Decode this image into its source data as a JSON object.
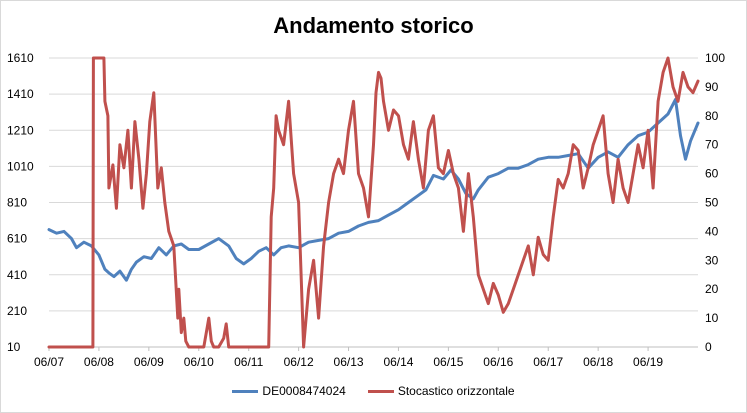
{
  "chart_data": {
    "type": "line",
    "title": "Andamento storico",
    "x_ticks": [
      "06/07",
      "06/08",
      "06/09",
      "06/10",
      "06/11",
      "06/12",
      "06/13",
      "06/14",
      "06/15",
      "06/16",
      "06/17",
      "06/18",
      "06/19"
    ],
    "x_range": [
      2007.5,
      2020.5
    ],
    "y_left": {
      "min": 10,
      "max": 1610,
      "ticks": [
        10,
        210,
        410,
        610,
        810,
        1010,
        1210,
        1410,
        1610
      ]
    },
    "y_right": {
      "min": 0,
      "max": 100,
      "ticks": [
        0,
        10,
        20,
        30,
        40,
        50,
        60,
        70,
        80,
        90,
        100
      ]
    },
    "grid": true,
    "legend_position": "bottom",
    "series": [
      {
        "name": "DE0008474024",
        "axis": "left",
        "color": "#4f81bd",
        "x": [
          2007.5,
          2007.65,
          2007.8,
          2007.95,
          2008.05,
          2008.2,
          2008.35,
          2008.5,
          2008.62,
          2008.7,
          2008.8,
          2008.92,
          2009.05,
          2009.15,
          2009.25,
          2009.4,
          2009.55,
          2009.7,
          2009.85,
          2010.0,
          2010.15,
          2010.3,
          2010.5,
          2010.7,
          2010.9,
          2011.1,
          2011.25,
          2011.4,
          2011.55,
          2011.7,
          2011.85,
          2012.0,
          2012.15,
          2012.3,
          2012.5,
          2012.7,
          2012.9,
          2013.1,
          2013.3,
          2013.5,
          2013.7,
          2013.9,
          2014.1,
          2014.3,
          2014.5,
          2014.7,
          2014.9,
          2015.05,
          2015.2,
          2015.4,
          2015.55,
          2015.7,
          2015.85,
          2016.0,
          2016.1,
          2016.3,
          2016.5,
          2016.7,
          2016.9,
          2017.1,
          2017.3,
          2017.5,
          2017.7,
          2017.9,
          2018.1,
          2018.3,
          2018.5,
          2018.7,
          2018.9,
          2019.1,
          2019.3,
          2019.5,
          2019.7,
          2019.9,
          2020.05,
          2020.15,
          2020.25,
          2020.35,
          2020.5
        ],
        "values": [
          660,
          640,
          650,
          610,
          560,
          590,
          570,
          520,
          440,
          420,
          400,
          430,
          380,
          440,
          480,
          510,
          500,
          560,
          520,
          570,
          580,
          550,
          550,
          580,
          610,
          570,
          500,
          470,
          500,
          540,
          560,
          520,
          560,
          570,
          560,
          590,
          600,
          610,
          640,
          650,
          680,
          700,
          710,
          740,
          770,
          810,
          850,
          880,
          960,
          940,
          990,
          940,
          860,
          830,
          880,
          950,
          970,
          1000,
          1000,
          1020,
          1050,
          1060,
          1060,
          1070,
          1080,
          1000,
          1060,
          1090,
          1060,
          1130,
          1180,
          1200,
          1250,
          1300,
          1380,
          1180,
          1050,
          1150,
          1250
        ]
      },
      {
        "name": "Stocastico orizzontale",
        "axis": "right",
        "color": "#c0504d",
        "x": [
          2007.5,
          2008.38,
          2008.39,
          2008.6,
          2008.62,
          2008.68,
          2008.7,
          2008.78,
          2008.85,
          2008.92,
          2009.0,
          2009.08,
          2009.15,
          2009.22,
          2009.3,
          2009.38,
          2009.45,
          2009.52,
          2009.6,
          2009.68,
          2009.75,
          2009.82,
          2009.9,
          2010.0,
          2010.08,
          2010.1,
          2010.15,
          2010.2,
          2010.24,
          2010.3,
          2010.32,
          2010.5,
          2010.6,
          2010.65,
          2010.7,
          2010.75,
          2010.8,
          2010.9,
          2011.0,
          2011.05,
          2011.1,
          2011.2,
          2011.3,
          2011.4,
          2011.5,
          2011.6,
          2011.7,
          2011.8,
          2011.9,
          2011.95,
          2012.0,
          2012.05,
          2012.1,
          2012.2,
          2012.3,
          2012.4,
          2012.5,
          2012.6,
          2012.7,
          2012.8,
          2012.9,
          2013.0,
          2013.1,
          2013.2,
          2013.3,
          2013.4,
          2013.5,
          2013.6,
          2013.7,
          2013.8,
          2013.9,
          2014.0,
          2014.05,
          2014.1,
          2014.15,
          2014.2,
          2014.3,
          2014.4,
          2014.5,
          2014.6,
          2014.7,
          2014.8,
          2014.9,
          2015.0,
          2015.1,
          2015.2,
          2015.3,
          2015.4,
          2015.5,
          2015.6,
          2015.7,
          2015.8,
          2015.9,
          2016.0,
          2016.1,
          2016.2,
          2016.3,
          2016.4,
          2016.5,
          2016.6,
          2016.7,
          2016.8,
          2016.9,
          2017.0,
          2017.1,
          2017.2,
          2017.3,
          2017.4,
          2017.5,
          2017.6,
          2017.7,
          2017.8,
          2017.9,
          2018.0,
          2018.1,
          2018.2,
          2018.3,
          2018.4,
          2018.5,
          2018.6,
          2018.7,
          2018.8,
          2018.9,
          2019.0,
          2019.1,
          2019.2,
          2019.3,
          2019.4,
          2019.5,
          2019.6,
          2019.7,
          2019.8,
          2019.9,
          2020.0,
          2020.1,
          2020.2,
          2020.3,
          2020.4,
          2020.5
        ],
        "values": [
          0,
          0,
          100,
          100,
          85,
          80,
          55,
          63,
          48,
          70,
          62,
          75,
          55,
          78,
          65,
          48,
          60,
          78,
          88,
          55,
          62,
          50,
          40,
          35,
          10,
          20,
          5,
          10,
          2,
          0,
          0,
          0,
          0,
          5,
          10,
          2,
          0,
          0,
          3,
          8,
          0,
          0,
          0,
          0,
          0,
          0,
          0,
          0,
          0,
          45,
          55,
          80,
          75,
          70,
          85,
          60,
          50,
          0,
          20,
          30,
          10,
          35,
          50,
          60,
          65,
          60,
          75,
          85,
          60,
          55,
          45,
          70,
          88,
          95,
          93,
          85,
          75,
          82,
          80,
          70,
          65,
          78,
          65,
          55,
          75,
          80,
          62,
          60,
          68,
          60,
          55,
          40,
          60,
          45,
          25,
          20,
          15,
          22,
          18,
          12,
          15,
          20,
          25,
          30,
          35,
          25,
          38,
          32,
          30,
          45,
          58,
          55,
          60,
          70,
          68,
          55,
          62,
          70,
          75,
          80,
          60,
          50,
          65,
          55,
          50,
          60,
          70,
          62,
          75,
          55,
          85,
          95,
          100,
          90,
          85,
          95,
          90,
          88,
          92
        ]
      }
    ]
  }
}
